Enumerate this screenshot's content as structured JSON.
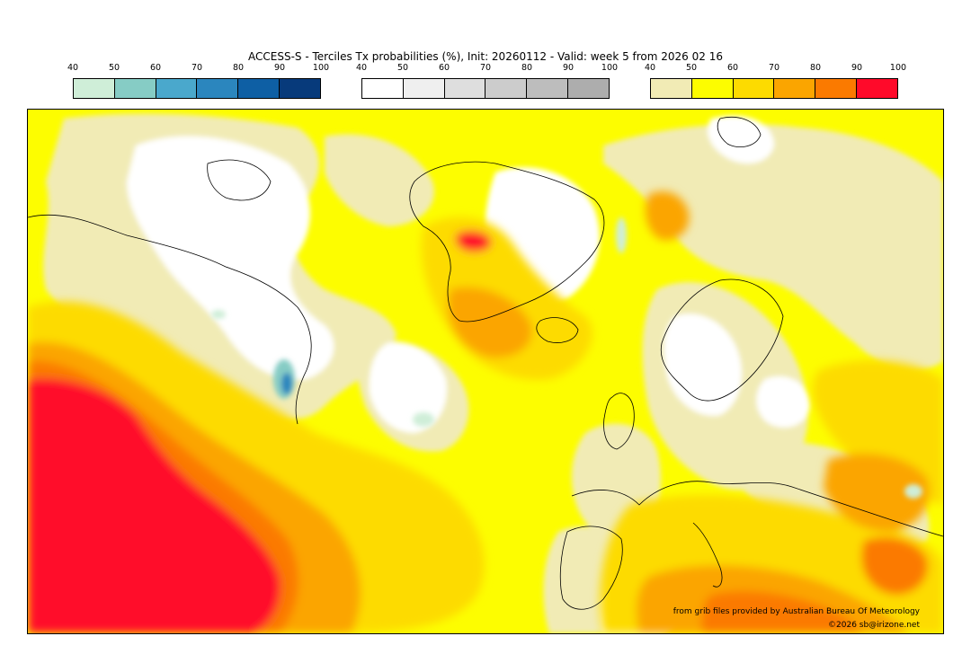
{
  "title": "ACCESS-S - Terciles Tx probabilities (%), Init: 20260112 - Valid: week 5 from 2026 02 16",
  "scales": [
    {
      "name": "below-normal",
      "ticks": [
        "40",
        "50",
        "60",
        "70",
        "80",
        "90",
        "100"
      ],
      "colors": [
        "#cfeed8",
        "#86ccc5",
        "#4aa8cc",
        "#2b86be",
        "#0e5fa4",
        "#073a7b"
      ]
    },
    {
      "name": "near-normal",
      "ticks": [
        "40",
        "50",
        "60",
        "70",
        "80",
        "90",
        "100"
      ],
      "colors": [
        "#ffffff",
        "#efefef",
        "#dedede",
        "#cccccc",
        "#bdbdbd",
        "#adadad"
      ]
    },
    {
      "name": "above-normal",
      "ticks": [
        "40",
        "50",
        "60",
        "70",
        "80",
        "90",
        "100"
      ],
      "colors": [
        "#f1ebb5",
        "#fdfd00",
        "#fddb00",
        "#fba500",
        "#fb7a00",
        "#ff0a2a"
      ]
    }
  ],
  "credits": {
    "source": "from grib files provided by Australian Bureau Of Meteorology",
    "copyright": "©2026 sb@irizone.net"
  }
}
